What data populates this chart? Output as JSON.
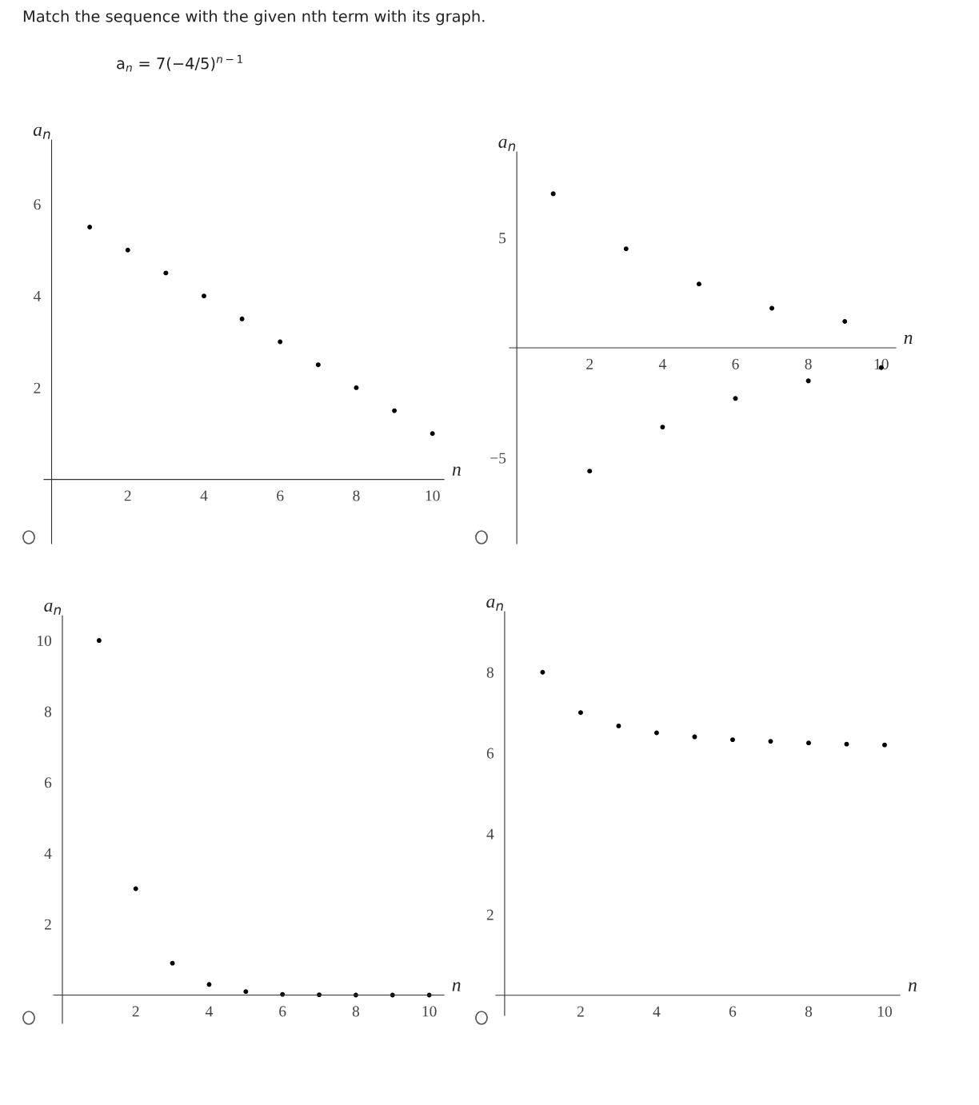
{
  "chart_data": [
    {
      "type": "scatter",
      "title": "Match the sequence with the given nth term with its graph.",
      "subtitle": "a$_{n}$ = 7(−4/5)$^{n−1}$",
      "xlabel": "n",
      "ylabel": "a$_{n}$",
      "x": [
        1,
        2,
        3,
        4,
        5,
        6,
        7,
        8,
        9,
        10
      ],
      "series": [
        {
          "color": "#000000",
          "values": [
            5.5,
            5,
            4.5,
            4,
            3.5,
            3,
            2.5,
            2,
            1.5,
            1
          ]
        }
      ],
      "xlim": [
        -0.2,
        10.3
      ],
      "ylim": [
        -1.4,
        7.4
      ],
      "xticks": [
        2,
        4,
        6,
        8,
        10
      ],
      "yticks": [
        2,
        4,
        6
      ],
      "grid": false,
      "legend": false,
      "marker": "circle"
    },
    {
      "type": "scatter",
      "xlabel": "n",
      "ylabel": "a$_{n}$",
      "x": [
        1,
        2,
        3,
        4,
        5,
        6,
        7,
        8,
        9,
        10
      ],
      "series": [
        {
          "color": "#000000",
          "values": [
            7,
            -5.6,
            4.5,
            -3.6,
            2.9,
            -2.3,
            1.8,
            -1.5,
            1.2,
            -0.9
          ]
        }
      ],
      "xlim": [
        -0.2,
        10.4
      ],
      "ylim": [
        -8.9,
        8.9
      ],
      "xticks": [
        2,
        4,
        6,
        8,
        10
      ],
      "yticks": [
        {
          "value": -5,
          "label": "−5"
        },
        5
      ],
      "grid": false,
      "legend": false,
      "marker": "circle"
    },
    {
      "type": "scatter",
      "xlabel": "n",
      "ylabel": "a$_{n}$",
      "x": [
        1,
        2,
        3,
        4,
        5,
        6,
        7,
        8,
        9,
        10
      ],
      "series": [
        {
          "color": "#000000",
          "values": [
            10,
            3,
            0.9,
            0.3,
            0.1,
            0.02,
            0.01,
            0,
            0,
            0
          ]
        }
      ],
      "xlim": [
        -0.24,
        10.4
      ],
      "ylim": [
        -0.8,
        10.7
      ],
      "xticks": [
        2,
        4,
        6,
        8,
        10
      ],
      "yticks": [
        2,
        4,
        6,
        8,
        10
      ],
      "grid": false,
      "legend": false,
      "marker": "circle"
    },
    {
      "type": "scatter",
      "xlabel": "n",
      "ylabel": "a$_{n}$",
      "x": [
        1,
        2,
        3,
        4,
        5,
        6,
        7,
        8,
        9,
        10
      ],
      "series": [
        {
          "color": "#000000",
          "values": [
            8,
            7,
            6.67,
            6.5,
            6.4,
            6.33,
            6.29,
            6.25,
            6.22,
            6.2
          ]
        }
      ],
      "xlim": [
        -0.23,
        10.4
      ],
      "ylim": [
        -0.5,
        9.5
      ],
      "xticks": [
        2,
        4,
        6,
        8,
        10
      ],
      "yticks": [
        2,
        4,
        6,
        8
      ],
      "grid": false,
      "legend": false,
      "marker": "circle"
    }
  ]
}
